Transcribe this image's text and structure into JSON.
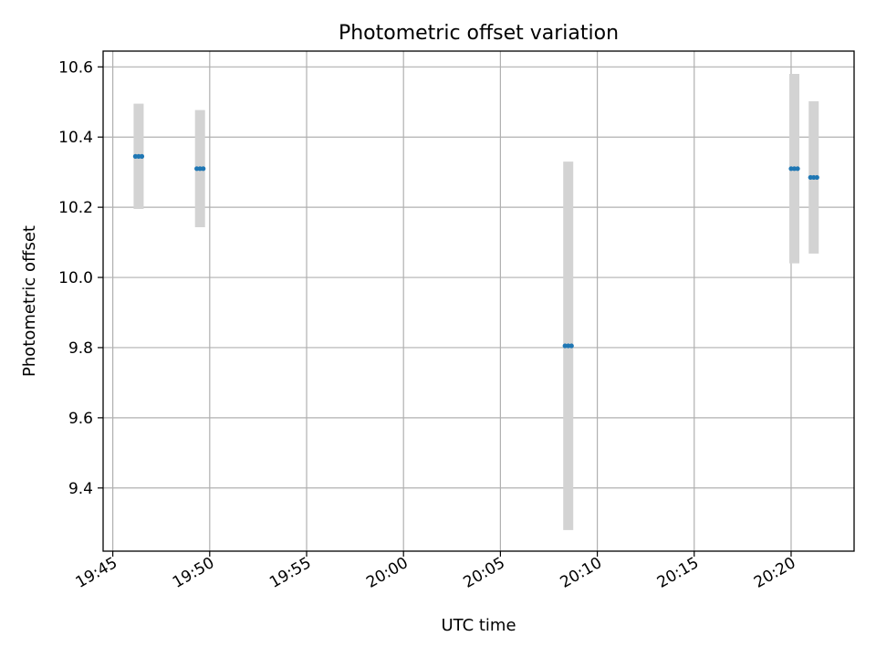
{
  "chart_data": {
    "type": "scatter",
    "title": "Photometric offset variation",
    "xlabel": "UTC time",
    "ylabel": "Photometric offset",
    "xlim": [
      "19:44:30",
      "20:23:15"
    ],
    "ylim": [
      9.22,
      10.645
    ],
    "x_ticks": [
      "19:45",
      "19:50",
      "19:55",
      "20:00",
      "20:05",
      "20:10",
      "20:15",
      "20:20"
    ],
    "y_ticks": [
      "9.4",
      "9.6",
      "9.8",
      "10.0",
      "10.2",
      "10.4",
      "10.6"
    ],
    "grid": true,
    "marker_color": "#1f77b4",
    "errorbar_color": "#d3d3d3",
    "points": [
      {
        "x_start": "19:46:10",
        "x_end": "19:46:30",
        "y": 10.345,
        "err": 0.15
      },
      {
        "x_start": "19:49:20",
        "x_end": "19:49:40",
        "y": 10.31,
        "err": 0.167
      },
      {
        "x_start": "20:08:20",
        "x_end": "20:08:40",
        "y": 9.805,
        "err": 0.525
      },
      {
        "x_start": "20:20:00",
        "x_end": "20:20:20",
        "y": 10.31,
        "err": 0.27
      },
      {
        "x_start": "20:21:00",
        "x_end": "20:21:20",
        "y": 10.285,
        "err": 0.217
      }
    ]
  }
}
